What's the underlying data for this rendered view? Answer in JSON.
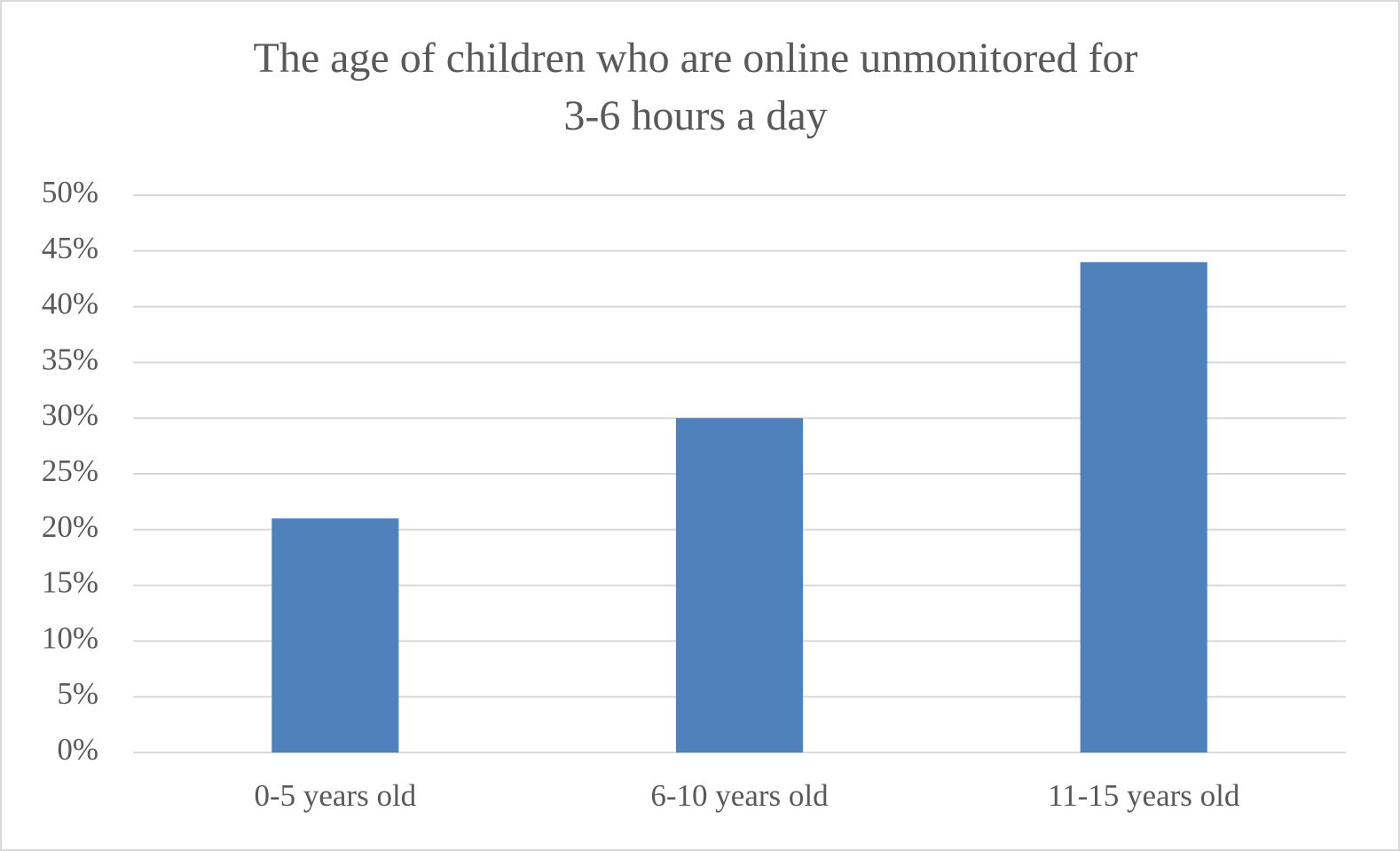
{
  "chart_data": {
    "type": "bar",
    "title": [
      "The age of children who are online unmonitored for",
      "3-6 hours a day"
    ],
    "categories": [
      "0-5 years old",
      "6-10 years old",
      "11-15 years old"
    ],
    "values": [
      21,
      30,
      44
    ],
    "color": "#4f81bd",
    "ylim": [
      0,
      50
    ],
    "yticks": [
      {
        "value": 0,
        "label": "0%"
      },
      {
        "value": 5,
        "label": "5%"
      },
      {
        "value": 10,
        "label": "10%"
      },
      {
        "value": 15,
        "label": "15%"
      },
      {
        "value": 20,
        "label": "20%"
      },
      {
        "value": 25,
        "label": "25%"
      },
      {
        "value": 30,
        "label": "30%"
      },
      {
        "value": 35,
        "label": "35%"
      },
      {
        "value": 40,
        "label": "40%"
      },
      {
        "value": 45,
        "label": "45%"
      },
      {
        "value": 50,
        "label": "50%"
      }
    ],
    "grid": true
  }
}
